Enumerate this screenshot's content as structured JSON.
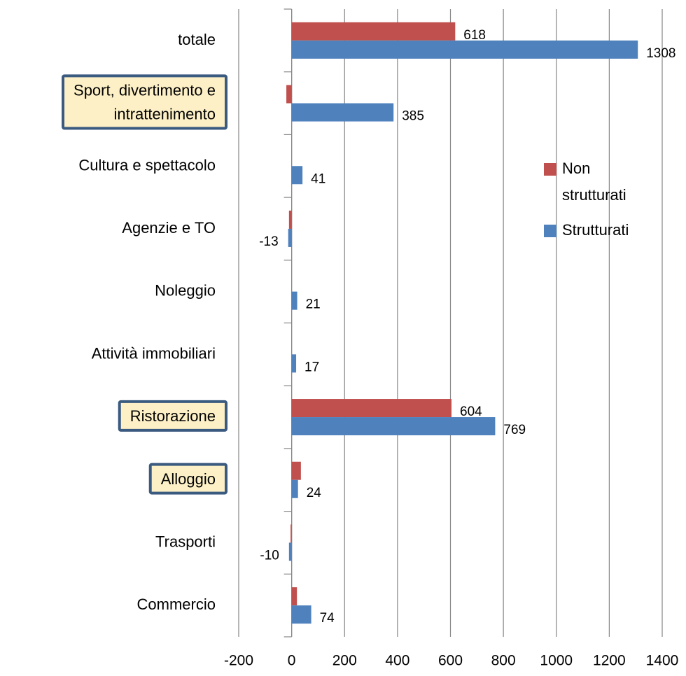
{
  "chart_data": {
    "type": "hbar",
    "categories": [
      "totale",
      "Sport, divertimento e intrattenimento",
      "Cultura e spettacolo",
      "Agenzie e TO",
      "Noleggio",
      "Attività immobiliari",
      "Ristorazione",
      "Alloggio",
      "Trasporti",
      "Commercio"
    ],
    "series": [
      {
        "name": "Non strutturati",
        "color": "#c0504d",
        "values": [
          618,
          -20,
          0,
          -10,
          0,
          0,
          604,
          35,
          -4,
          20
        ],
        "value_labels": [
          "618",
          null,
          null,
          null,
          null,
          null,
          "604",
          null,
          null,
          null
        ]
      },
      {
        "name": "Strutturati",
        "color": "#4f81bd",
        "values": [
          1308,
          385,
          41,
          -13,
          21,
          17,
          769,
          24,
          -10,
          74
        ]
      }
    ],
    "xlim": [
      -200,
      1400
    ],
    "xticks": [
      -200,
      0,
      200,
      400,
      600,
      800,
      1000,
      1200,
      1400
    ],
    "grid": true,
    "legend": "right",
    "highlight": {
      "fill": "#fdf0c6",
      "border": "#3b5a80",
      "categories": [
        1,
        6,
        7
      ]
    }
  }
}
